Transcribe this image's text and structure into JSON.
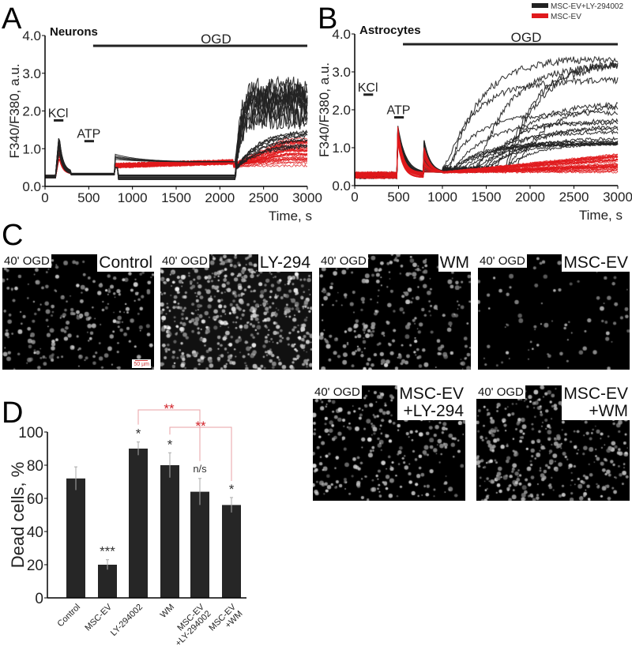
{
  "panels": {
    "a": "A",
    "b": "B",
    "c": "C",
    "d": "D"
  },
  "colors": {
    "black_series": "#222222",
    "red_series": "#e0191c",
    "sig_red": "#d2232a",
    "bracket": "#e8a0a6"
  },
  "chart_data": [
    {
      "type": "line",
      "title": "Neurons",
      "xlabel": "Time, s",
      "ylabel": "F340/F380, a.u.",
      "xlim": [
        0,
        3000
      ],
      "ylim": [
        0,
        4.0
      ],
      "xticks": [
        "0",
        "500",
        "1000",
        "1500",
        "2000",
        "2500",
        "3000"
      ],
      "yticks": [
        "0.0",
        "1.0",
        "2.0",
        "3.0",
        "4.0"
      ],
      "annotations": {
        "kcl": "KCl",
        "atp": "ATP",
        "ogd": "OGD"
      },
      "series": [
        {
          "name": "MSC-EV+LY-294002",
          "color": "#222222",
          "x": [
            0,
            120,
            150,
            250,
            800,
            820,
            2150,
            2250,
            3000
          ],
          "y": [
            0.25,
            0.3,
            1.4,
            0.35,
            0.3,
            0.6,
            0.25,
            1.8,
            2.5
          ]
        },
        {
          "name": "MSC-EV",
          "color": "#e0191c",
          "x": [
            0,
            120,
            150,
            250,
            800,
            820,
            2150,
            3000
          ],
          "y": [
            0.25,
            0.3,
            1.1,
            0.3,
            0.3,
            0.55,
            0.6,
            1.0
          ]
        }
      ]
    },
    {
      "type": "line",
      "title": "Astrocytes",
      "xlabel": "Time, s",
      "ylabel": "F340/F380, a.u.",
      "xlim": [
        0,
        3000
      ],
      "ylim": [
        0,
        4.0
      ],
      "xticks": [
        "0",
        "500",
        "1000",
        "1500",
        "2000",
        "2500",
        "3000"
      ],
      "yticks": [
        "0.0",
        "1.0",
        "2.0",
        "3.0",
        "4.0"
      ],
      "annotations": {
        "kcl": "KCl",
        "atp": "ATP",
        "ogd": "OGD"
      },
      "legend": {
        "position": "top-right",
        "entries": [
          "MSC-EV+LY-294002",
          "MSC-EV"
        ]
      },
      "series": [
        {
          "name": "MSC-EV+LY-294002",
          "color": "#222222",
          "x": [
            0,
            480,
            500,
            780,
            820,
            1200,
            1700,
            2200,
            3000
          ],
          "y": [
            0.25,
            0.25,
            1.2,
            0.4,
            1.2,
            0.5,
            1.3,
            1.8,
            2.0
          ]
        },
        {
          "name": "MSC-EV",
          "color": "#e0191c",
          "x": [
            0,
            480,
            500,
            780,
            820,
            1500,
            3000
          ],
          "y": [
            0.3,
            0.3,
            1.5,
            0.35,
            1.0,
            0.4,
            0.7
          ]
        }
      ]
    },
    {
      "type": "bar",
      "ylabel": "Dead cells, %",
      "ylim": [
        0,
        100
      ],
      "yticks": [
        "0",
        "20",
        "40",
        "60",
        "80",
        "100"
      ],
      "categories": [
        "Control",
        "MSC-EV",
        "LY-294002",
        "WM",
        "MSC-EV\n+LY-294002",
        "MSC-EV\n+WM"
      ],
      "category_lines": [
        [
          "Control"
        ],
        [
          "MSC-EV"
        ],
        [
          "LY-294002"
        ],
        [
          "WM"
        ],
        [
          "MSC-EV",
          "+LY-294002"
        ],
        [
          "MSC-EV",
          "+WM"
        ]
      ],
      "values": [
        72,
        20,
        90,
        80,
        64,
        56
      ],
      "errors": [
        7,
        3,
        4,
        7.5,
        8,
        4.5
      ],
      "significance": [
        "",
        "***",
        "*",
        "*",
        "n/s",
        "*"
      ],
      "brackets": [
        {
          "from": "LY-294002",
          "to": "MSC-EV\n+LY-294002",
          "label": "**"
        },
        {
          "from": "WM",
          "to": "MSC-EV\n+WM",
          "label": "**"
        }
      ]
    }
  ],
  "micrographs": [
    {
      "left": "40' OGD",
      "right": [
        "Control"
      ],
      "density": 260,
      "bright": 0.75,
      "scale": "50 µm"
    },
    {
      "left": "40' OGD",
      "right": [
        "LY-294"
      ],
      "density": 650,
      "bright": 1.0
    },
    {
      "left": "40' OGD",
      "right": [
        "WM"
      ],
      "density": 280,
      "bright": 0.7
    },
    {
      "left": "40' OGD",
      "right": [
        "MSC-EV"
      ],
      "density": 90,
      "bright": 0.6
    },
    {
      "left": "40' OGD",
      "right": [
        "MSC-EV",
        "+LY-294"
      ],
      "density": 330,
      "bright": 0.85
    },
    {
      "left": "40' OGD",
      "right": [
        "MSC-EV",
        "+WM"
      ],
      "density": 420,
      "bright": 0.8
    }
  ]
}
